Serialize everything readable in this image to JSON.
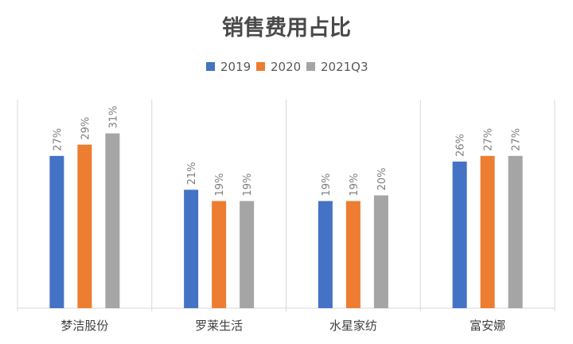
{
  "chart_data": {
    "type": "bar",
    "title": "销售费用占比",
    "xlabel": "",
    "ylabel": "",
    "ylim": [
      0,
      37
    ],
    "grid": false,
    "legend_position": "top",
    "categories": [
      "梦洁股份",
      "罗莱生活",
      "水星家纺",
      "富安娜"
    ],
    "series": [
      {
        "name": "2019",
        "color": "#4472C4",
        "values": [
          27,
          21,
          19,
          26
        ],
        "labels": [
          "27%",
          "21%",
          "19%",
          "26%"
        ]
      },
      {
        "name": "2020",
        "color": "#ED7D31",
        "values": [
          29,
          19,
          19,
          27
        ],
        "labels": [
          "29%",
          "19%",
          "19%",
          "27%"
        ]
      },
      {
        "name": "2021Q3",
        "color": "#A5A5A5",
        "values": [
          31,
          19,
          20,
          27
        ],
        "labels": [
          "31%",
          "19%",
          "20%",
          "27%"
        ]
      }
    ]
  }
}
